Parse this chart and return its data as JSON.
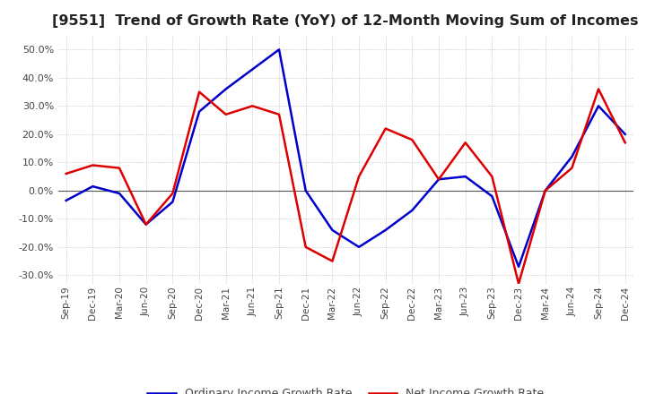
{
  "title": "[9551]  Trend of Growth Rate (YoY) of 12-Month Moving Sum of Incomes",
  "title_fontsize": 11.5,
  "ylim": [
    -33,
    55
  ],
  "yticks": [
    -30,
    -20,
    -10,
    0,
    10,
    20,
    30,
    40,
    50
  ],
  "background_color": "#ffffff",
  "grid_color": "#aaaaaa",
  "ordinary_color": "#0000cc",
  "net_color": "#dd0000",
  "legend_labels": [
    "Ordinary Income Growth Rate",
    "Net Income Growth Rate"
  ],
  "x_labels": [
    "Sep-19",
    "Dec-19",
    "Mar-20",
    "Jun-20",
    "Sep-20",
    "Dec-20",
    "Mar-21",
    "Jun-21",
    "Sep-21",
    "Dec-21",
    "Mar-22",
    "Jun-22",
    "Sep-22",
    "Dec-22",
    "Mar-23",
    "Jun-23",
    "Sep-23",
    "Dec-23",
    "Mar-24",
    "Jun-24",
    "Sep-24",
    "Dec-24"
  ],
  "ordinary": [
    -3.5,
    1.5,
    -1.0,
    -12.0,
    -4.0,
    28.0,
    36.0,
    43.0,
    50.0,
    0.0,
    -14.0,
    -20.0,
    -14.0,
    -7.0,
    4.0,
    5.0,
    -2.0,
    -27.0,
    0.0,
    12.0,
    30.0,
    20.0
  ],
  "net": [
    6.0,
    9.0,
    8.0,
    -12.0,
    -1.0,
    35.0,
    27.0,
    30.0,
    27.0,
    -20.0,
    -25.0,
    5.0,
    22.0,
    18.0,
    4.0,
    17.0,
    5.0,
    -33.0,
    0.0,
    8.0,
    36.0,
    17.0
  ]
}
